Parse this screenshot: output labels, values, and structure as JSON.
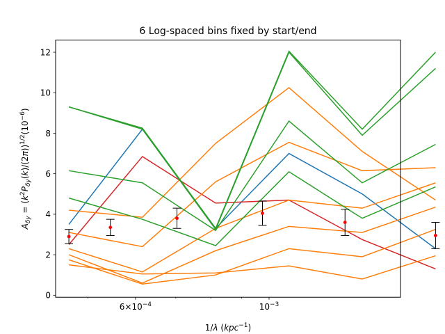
{
  "chart_data": {
    "type": "line",
    "title": "6 Log-spaced bins fixed by start/end",
    "xlabel": "1/λ (kpc⁻¹)",
    "ylabel": "A_δy = (k²P_δy(k)/(2π))^{1/2}(10⁻⁶)",
    "xscale": "log",
    "xlim": [
      0.000442,
      0.001653
    ],
    "ylim": [
      -0.1,
      12.6
    ],
    "x": [
      0.000465,
      0.000616,
      0.000815,
      0.001079,
      0.001428,
      0.00189
    ],
    "x_major_ticks": [
      {
        "value": 0.0006,
        "label": "6×10⁻⁴"
      },
      {
        "value": 0.001,
        "label": "10⁻³"
      }
    ],
    "x_minor_ticks": [
      0.0005,
      0.0007,
      0.0008,
      0.0009
    ],
    "y_ticks": [
      0,
      2,
      4,
      6,
      8,
      10,
      12
    ],
    "grid": false,
    "colors": {
      "blue": "#1f77b4",
      "orange": "#ff7f0e",
      "green": "#2ca02c",
      "red": "#d62728",
      "points": "#ff0000"
    },
    "series": [
      {
        "color": "blue",
        "values": [
          3.5,
          8.2,
          3.3,
          7.0,
          5.0,
          2.3
        ]
      },
      {
        "color": "red",
        "values": [
          2.5,
          6.85,
          4.55,
          4.7,
          2.75,
          1.3
        ]
      },
      {
        "color": "orange",
        "values": [
          4.2,
          3.85,
          7.5,
          10.25,
          7.1,
          4.7
        ]
      },
      {
        "color": "orange",
        "values": [
          3.1,
          2.4,
          5.6,
          7.55,
          6.15,
          6.3
        ]
      },
      {
        "color": "orange",
        "values": [
          2.3,
          1.15,
          3.3,
          4.7,
          4.3,
          5.55
        ]
      },
      {
        "color": "orange",
        "values": [
          2.0,
          0.6,
          2.2,
          3.4,
          3.1,
          4.35
        ]
      },
      {
        "color": "orange",
        "values": [
          1.75,
          0.55,
          1.0,
          2.3,
          1.9,
          3.25
        ]
      },
      {
        "color": "orange",
        "values": [
          1.5,
          1.05,
          1.1,
          1.45,
          0.8,
          1.95
        ]
      },
      {
        "color": "green",
        "values": [
          9.3,
          8.25,
          3.3,
          12.05,
          8.2,
          12.0
        ]
      },
      {
        "color": "green",
        "values": [
          9.3,
          8.2,
          3.25,
          12.0,
          7.9,
          11.2
        ]
      },
      {
        "color": "green",
        "values": [
          6.15,
          5.55,
          3.2,
          8.6,
          5.55,
          7.45
        ]
      },
      {
        "color": "green",
        "values": [
          4.8,
          3.75,
          2.45,
          6.1,
          3.8,
          5.35
        ]
      }
    ],
    "errorbars": {
      "x": [
        0.000465,
        0.000545,
        0.000703,
        0.000975,
        0.001337,
        0.00189
      ],
      "y": [
        2.9,
        3.35,
        3.8,
        4.05,
        3.6,
        2.95
      ],
      "err": [
        0.35,
        0.4,
        0.5,
        0.6,
        0.65,
        0.65
      ]
    }
  }
}
